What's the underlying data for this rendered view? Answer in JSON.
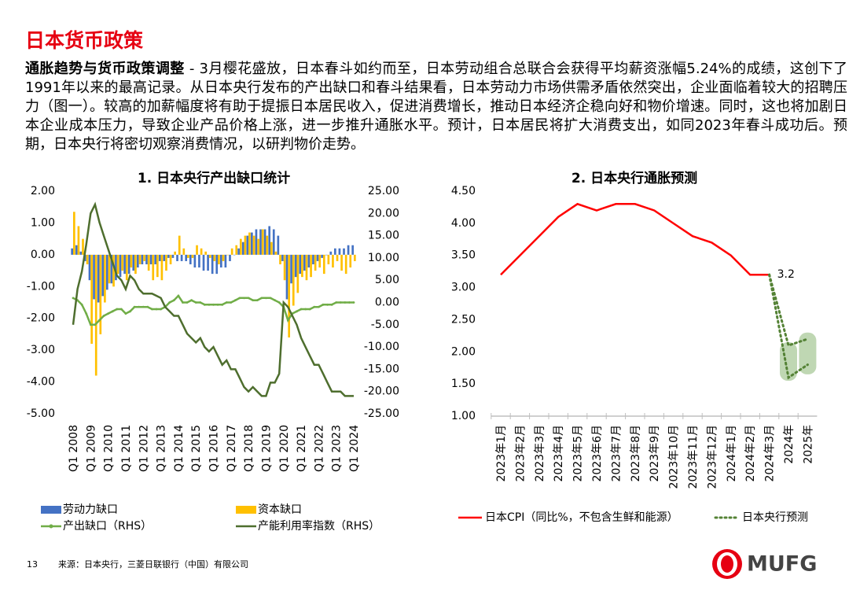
{
  "header": {
    "title": "日本货币政策"
  },
  "paragraph": {
    "lead": "通胀趋势与货币政策调整",
    "body": " - 3月樱花盛放，日本春斗如约而至，日本劳动组合总联合会获得平均薪资涨幅5.24%的成绩，这创下了1991年以来的最高记录。从日本央行发布的产出缺口和春斗结果看，日本劳动力市场供需矛盾依然突出，企业面临着较大的招聘压力（图一）。较高的加薪幅度将有助于提振日本居民收入，促进消费增长，推动日本经济企稳向好和物价增速。同时，这也将加剧日本企业成本压力，导致企业产品价格上涨，进一步推升通胀水平。预计，日本居民将扩大消费支出，如同2023年春斗成功后。预期，日本央行将密切观察消费情况，以研判物价走势。"
  },
  "footer": {
    "page": "13",
    "source": "来源：日本央行，三菱日联银行（中国）有限公司",
    "logo": "MUFG"
  },
  "chart_data": [
    {
      "type": "combo",
      "title": "1. 日本央行产出缺口统计",
      "categories": [
        "Q1 2008",
        null,
        null,
        null,
        "Q1 2009",
        null,
        null,
        null,
        "Q1 2010",
        null,
        null,
        null,
        "Q1 2011",
        null,
        null,
        null,
        "Q1 2012",
        null,
        null,
        null,
        "Q1 2013",
        null,
        null,
        null,
        "Q1 2014",
        null,
        null,
        null,
        "Q1 2015",
        null,
        null,
        null,
        "Q1 2016",
        null,
        null,
        null,
        "Q1 2017",
        null,
        null,
        null,
        "Q1 2018",
        null,
        null,
        null,
        "Q1 2019",
        null,
        null,
        null,
        "Q1 2020",
        null,
        null,
        null,
        "Q1 2021",
        null,
        null,
        null,
        "Q1 2022",
        null,
        null,
        null,
        "Q1 2023",
        null,
        null,
        null,
        "Q1 2024"
      ],
      "ylim": [
        -5,
        2
      ],
      "yticks": [
        {
          "value": 2,
          "label": "2.00"
        },
        {
          "value": 1,
          "label": "1.00"
        },
        {
          "value": 0,
          "label": "0.00"
        },
        {
          "value": -1,
          "label": "-1.00"
        },
        {
          "value": -2,
          "label": "-2.00"
        },
        {
          "value": -3,
          "label": "-3.00"
        },
        {
          "value": -4,
          "label": "-4.00"
        },
        {
          "value": -5,
          "label": "-5.00"
        }
      ],
      "y2lim": [
        -25,
        25
      ],
      "y2ticks": [
        {
          "value": 25,
          "label": "25.00"
        },
        {
          "value": 20,
          "label": "20.00"
        },
        {
          "value": 15,
          "label": "15.00"
        },
        {
          "value": 10,
          "label": "10.00"
        },
        {
          "value": 5,
          "label": "5.00"
        },
        {
          "value": 0,
          "label": "0.00"
        },
        {
          "value": -5,
          "label": "-5.00"
        },
        {
          "value": -10,
          "label": "-10.00"
        },
        {
          "value": -15,
          "label": "-15.00"
        },
        {
          "value": -20,
          "label": "-20.00"
        },
        {
          "value": -25,
          "label": "-25.00"
        }
      ],
      "series": [
        {
          "name": "劳动力缺口",
          "type": "bar",
          "color": "#4472c4",
          "values": [
            0.2,
            0.3,
            0.1,
            -0.2,
            -0.8,
            -1.4,
            -1.5,
            -1.3,
            -1.1,
            -0.9,
            -0.8,
            -0.7,
            -0.6,
            -0.6,
            -0.5,
            -0.4,
            -0.3,
            -0.3,
            -0.3,
            -0.3,
            -0.2,
            -0.2,
            -0.1,
            -0.1,
            -0.2,
            -0.2,
            -0.2,
            -0.3,
            -0.4,
            -0.4,
            -0.5,
            -0.5,
            -0.6,
            -0.6,
            -0.4,
            -0.4,
            -0.2,
            0.0,
            0.2,
            0.4,
            0.6,
            0.7,
            0.8,
            0.8,
            0.8,
            0.9,
            0.8,
            0.6,
            -0.2,
            -1.4,
            -0.9,
            -0.7,
            -0.6,
            -0.5,
            -0.4,
            -0.3,
            -0.2,
            -0.1,
            0.0,
            0.1,
            0.2,
            0.2,
            0.2,
            0.3,
            0.3
          ]
        },
        {
          "name": "资本缺口",
          "type": "bar",
          "color": "#ffc000",
          "values": [
            1.35,
            0.9,
            0.5,
            -0.3,
            -2.8,
            -3.8,
            -2.5,
            -1.5,
            -0.9,
            -1.0,
            -0.6,
            -0.5,
            -0.8,
            -0.4,
            -0.6,
            -0.3,
            -0.2,
            -0.5,
            -0.8,
            -0.7,
            -0.8,
            -0.5,
            -0.3,
            0.1,
            0.6,
            0.2,
            -0.1,
            -0.1,
            0.3,
            0.2,
            0.1,
            -0.1,
            -0.2,
            -0.3,
            -0.2,
            0.0,
            0.2,
            0.3,
            0.5,
            0.6,
            0.7,
            0.6,
            0.5,
            0.8,
            0.6,
            0.4,
            0.1,
            -0.3,
            -0.8,
            -2.6,
            -1.6,
            -1.2,
            -0.7,
            -0.8,
            -0.7,
            -0.5,
            -0.4,
            -0.6,
            -0.3,
            -0.4,
            -0.2,
            -0.5,
            -0.6,
            -0.4,
            -0.2
          ]
        },
        {
          "name": "产出缺口（RHS）",
          "type": "line",
          "axis": "y2",
          "marker": true,
          "color": "#70ad47",
          "values": [
            1,
            0.5,
            -0.5,
            -2.5,
            -5,
            -5,
            -4,
            -3,
            -2.5,
            -2,
            -1.5,
            -1.5,
            -2.5,
            -2,
            -1,
            -1,
            -1,
            -1,
            -1.5,
            -1.5,
            -1.5,
            -1,
            0,
            0.5,
            1.5,
            0,
            0,
            0.5,
            0,
            0,
            -0.5,
            -0.5,
            -0.5,
            -0.5,
            -0.5,
            0,
            0,
            0.5,
            1,
            1,
            1,
            0.5,
            0.5,
            1,
            1,
            1,
            0.5,
            0,
            -1,
            -4,
            -2.5,
            -2,
            -1.5,
            -1.5,
            -1.5,
            -1,
            -1,
            -0.5,
            -0.5,
            -0.5,
            0,
            0,
            0,
            0,
            0
          ]
        },
        {
          "name": "产能利用率指数（RHS）",
          "type": "line",
          "axis": "y2",
          "color": "#4e6e2e",
          "values": [
            -5,
            3,
            7,
            13,
            20,
            22,
            18,
            15,
            12,
            9,
            6,
            5,
            3,
            6,
            5,
            3,
            2,
            2,
            2,
            1.5,
            1,
            -1,
            -2,
            -3,
            -3,
            -5,
            -7,
            -8,
            -9,
            -8,
            -10,
            -11,
            -10,
            -12,
            -14,
            -13,
            -15,
            -15,
            -17,
            -19,
            -20,
            -19,
            -20,
            -21,
            -21,
            -18,
            -18,
            -16,
            0,
            -1,
            -3,
            -5,
            -8,
            -10,
            -12,
            -14,
            -14,
            -16,
            -18,
            -20,
            -20,
            -20,
            -21,
            -21,
            -21
          ]
        }
      ]
    },
    {
      "type": "line",
      "title": "2. 日本央行通胀预测",
      "categories": [
        "2023年1月",
        "2023年2月",
        "2023年3月",
        "2023年4月",
        "2023年5月",
        "2023年6月",
        "2023年7月",
        "2023年8月",
        "2023年9月",
        "2023年10月",
        "2023年11月",
        "2023年12月",
        "2024年1月",
        "2024年2月",
        "2024年3月",
        "2024年",
        "2025年"
      ],
      "ylim": [
        1,
        4.5
      ],
      "yticks": [
        {
          "value": 4.5,
          "label": "4.50"
        },
        {
          "value": 4,
          "label": "4.00"
        },
        {
          "value": 3.5,
          "label": "3.50"
        },
        {
          "value": 3,
          "label": "3.00"
        },
        {
          "value": 2.5,
          "label": "2.50"
        },
        {
          "value": 2,
          "label": "2.00"
        },
        {
          "value": 1.5,
          "label": "1.50"
        },
        {
          "value": 1,
          "label": "1.00"
        }
      ],
      "series": [
        {
          "name": "日本CPI（同比%，不包含生鲜和能源）",
          "color": "#ff0000",
          "dash": false,
          "values": [
            3.2,
            3.5,
            3.8,
            4.1,
            4.3,
            4.2,
            4.3,
            4.3,
            4.2,
            4.0,
            3.8,
            3.7,
            3.5,
            3.2,
            3.2,
            null,
            null
          ],
          "value_labels": [
            null,
            null,
            null,
            null,
            null,
            null,
            null,
            null,
            null,
            null,
            null,
            null,
            null,
            null,
            "3.2",
            null,
            null
          ]
        },
        {
          "name": "日本央行预测",
          "color": "#548235",
          "dash": true,
          "values": [
            null,
            null,
            null,
            null,
            null,
            null,
            null,
            null,
            null,
            null,
            null,
            null,
            null,
            null,
            3.2,
            2.1,
            2.2
          ],
          "low": [
            null,
            null,
            null,
            null,
            null,
            null,
            null,
            null,
            null,
            null,
            null,
            null,
            null,
            null,
            3.2,
            1.6,
            1.8
          ],
          "range_low": [
            null,
            null,
            null,
            null,
            null,
            null,
            null,
            null,
            null,
            null,
            null,
            null,
            null,
            null,
            null,
            1.55,
            1.65
          ],
          "range_high": [
            null,
            null,
            null,
            null,
            null,
            null,
            null,
            null,
            null,
            null,
            null,
            null,
            null,
            null,
            null,
            2.15,
            2.3
          ]
        }
      ]
    }
  ]
}
